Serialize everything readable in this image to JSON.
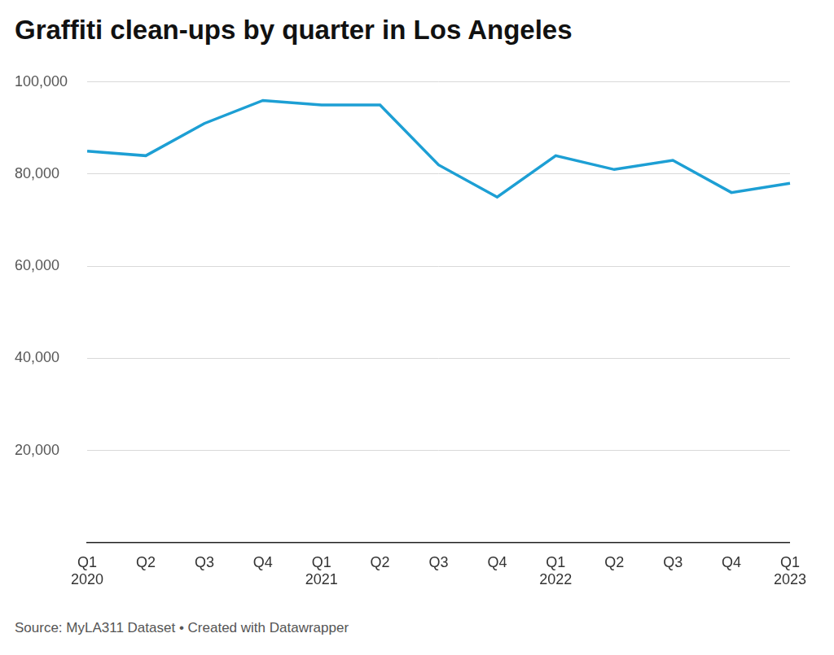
{
  "chart_data": {
    "type": "line",
    "title": "Graffiti clean-ups by quarter in Los Angeles",
    "source": "Source: MyLA311 Dataset • Created with Datawrapper",
    "categories": [
      "Q1\n2020",
      "Q2",
      "Q3",
      "Q4",
      "Q1\n2021",
      "Q2",
      "Q3",
      "Q4",
      "Q1\n2022",
      "Q2",
      "Q3",
      "Q4",
      "Q1\n2023"
    ],
    "values": [
      85000,
      84000,
      91000,
      96000,
      95000,
      95000,
      82000,
      75000,
      84000,
      81000,
      83000,
      76000,
      78000
    ],
    "color": "#1d9fd4",
    "ylim": [
      0,
      100000
    ],
    "yticks": [
      {
        "value": 20000,
        "label": "20,000"
      },
      {
        "value": 40000,
        "label": "40,000"
      },
      {
        "value": 60000,
        "label": "60,000"
      },
      {
        "value": 80000,
        "label": "80,000"
      },
      {
        "value": 100000,
        "label": "100,000"
      }
    ],
    "grid": true
  }
}
